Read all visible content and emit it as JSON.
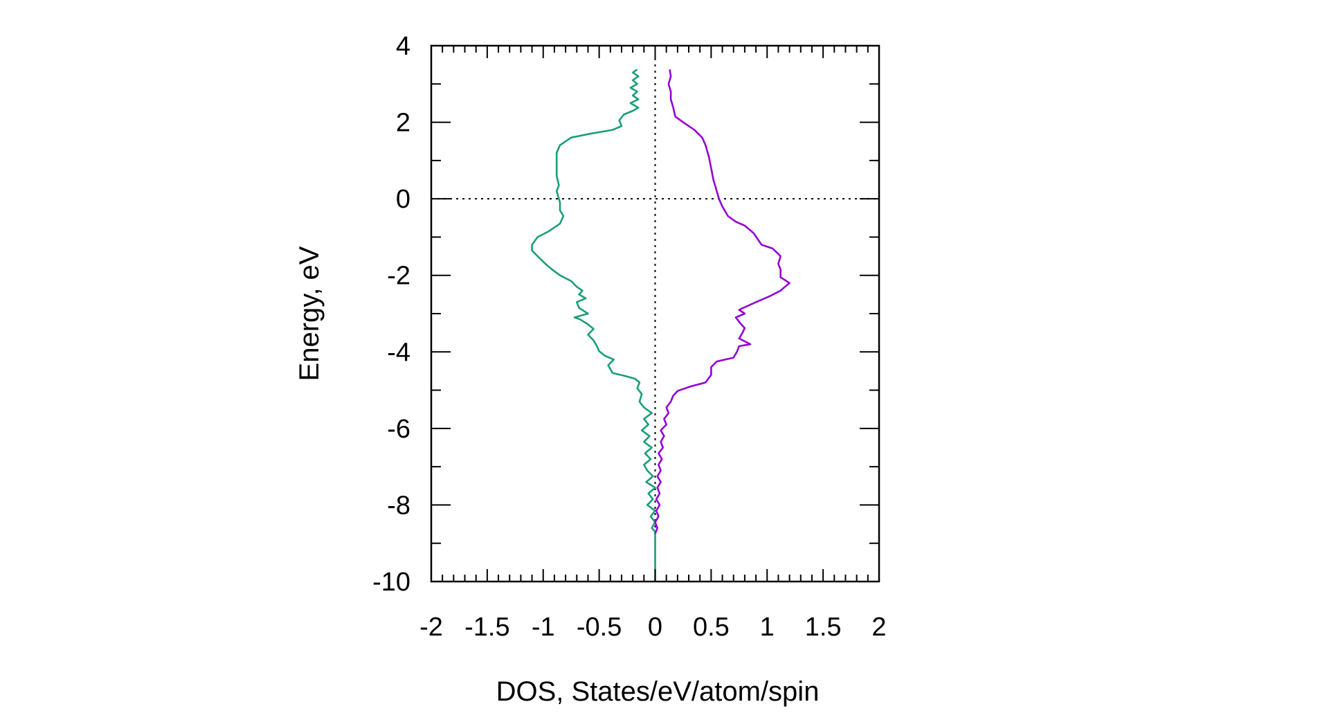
{
  "chart_data": {
    "type": "line",
    "title": "",
    "xlabel": "DOS, States/eV/atom/spin",
    "ylabel": "Energy, eV",
    "xlim": [
      -2,
      2
    ],
    "ylim": [
      -10,
      4
    ],
    "x_ticks": [
      -2,
      -1.5,
      -1,
      -0.5,
      0,
      0.5,
      1,
      1.5,
      2
    ],
    "x_tick_labels": [
      "-2",
      "-1.5",
      "-1",
      "-0.5",
      "0",
      "0.5",
      "1",
      "1.5",
      "2"
    ],
    "y_ticks": [
      -10,
      -8,
      -6,
      -4,
      -2,
      0,
      2,
      4
    ],
    "y_tick_labels": [
      "-10",
      "-8",
      "-6",
      "-4",
      "-2",
      "0",
      "2",
      "4"
    ],
    "grid": false,
    "reference_lines": [
      {
        "orientation": "horizontal",
        "value": 0,
        "style": "dotted"
      },
      {
        "orientation": "vertical",
        "value": 0,
        "style": "dotted"
      }
    ],
    "series": [
      {
        "color": "#1a9d7a",
        "points": [
          [
            0.0,
            -10.0
          ],
          [
            0.0,
            -8.7
          ],
          [
            -0.03,
            -8.6
          ],
          [
            0.0,
            -8.45
          ],
          [
            -0.04,
            -8.3
          ],
          [
            0.0,
            -8.15
          ],
          [
            -0.07,
            -8.0
          ],
          [
            -0.02,
            -7.85
          ],
          [
            -0.06,
            -7.7
          ],
          [
            0.0,
            -7.55
          ],
          [
            -0.08,
            -7.4
          ],
          [
            -0.02,
            -7.25
          ],
          [
            -0.07,
            -7.1
          ],
          [
            -0.1,
            -6.95
          ],
          [
            -0.04,
            -6.8
          ],
          [
            -0.09,
            -6.65
          ],
          [
            -0.03,
            -6.5
          ],
          [
            -0.1,
            -6.35
          ],
          [
            -0.05,
            -6.2
          ],
          [
            -0.12,
            -6.05
          ],
          [
            -0.06,
            -5.9
          ],
          [
            -0.1,
            -5.75
          ],
          [
            -0.03,
            -5.6
          ],
          [
            -0.1,
            -5.45
          ],
          [
            -0.14,
            -5.3
          ],
          [
            -0.12,
            -5.1
          ],
          [
            -0.16,
            -4.95
          ],
          [
            -0.14,
            -4.8
          ],
          [
            -0.18,
            -4.7
          ],
          [
            -0.28,
            -4.62
          ],
          [
            -0.38,
            -4.55
          ],
          [
            -0.42,
            -4.35
          ],
          [
            -0.37,
            -4.2
          ],
          [
            -0.45,
            -4.1
          ],
          [
            -0.5,
            -3.98
          ],
          [
            -0.52,
            -3.85
          ],
          [
            -0.55,
            -3.7
          ],
          [
            -0.6,
            -3.55
          ],
          [
            -0.55,
            -3.4
          ],
          [
            -0.6,
            -3.28
          ],
          [
            -0.67,
            -3.15
          ],
          [
            -0.72,
            -3.1
          ],
          [
            -0.6,
            -3.0
          ],
          [
            -0.68,
            -2.85
          ],
          [
            -0.7,
            -2.7
          ],
          [
            -0.62,
            -2.6
          ],
          [
            -0.68,
            -2.5
          ],
          [
            -0.65,
            -2.4
          ],
          [
            -0.7,
            -2.3
          ],
          [
            -0.75,
            -2.15
          ],
          [
            -0.85,
            -2.0
          ],
          [
            -0.92,
            -1.85
          ],
          [
            -0.98,
            -1.7
          ],
          [
            -1.05,
            -1.5
          ],
          [
            -1.1,
            -1.35
          ],
          [
            -1.1,
            -1.2
          ],
          [
            -1.05,
            -1.0
          ],
          [
            -0.95,
            -0.85
          ],
          [
            -0.85,
            -0.65
          ],
          [
            -0.82,
            -0.45
          ],
          [
            -0.85,
            -0.3
          ],
          [
            -0.85,
            -0.1
          ],
          [
            -0.86,
            0.0
          ],
          [
            -0.88,
            0.2
          ],
          [
            -0.86,
            0.35
          ],
          [
            -0.88,
            0.6
          ],
          [
            -0.88,
            0.8
          ],
          [
            -0.88,
            1.0
          ],
          [
            -0.88,
            1.2
          ],
          [
            -0.85,
            1.4
          ],
          [
            -0.75,
            1.6
          ],
          [
            -0.58,
            1.7
          ],
          [
            -0.38,
            1.8
          ],
          [
            -0.3,
            1.9
          ],
          [
            -0.32,
            2.05
          ],
          [
            -0.28,
            2.2
          ],
          [
            -0.2,
            2.3
          ],
          [
            -0.15,
            2.38
          ],
          [
            -0.22,
            2.5
          ],
          [
            -0.15,
            2.6
          ],
          [
            -0.2,
            2.7
          ],
          [
            -0.16,
            2.8
          ],
          [
            -0.22,
            2.9
          ],
          [
            -0.16,
            3.0
          ],
          [
            -0.2,
            3.1
          ],
          [
            -0.15,
            3.2
          ],
          [
            -0.2,
            3.3
          ],
          [
            -0.16,
            3.38
          ]
        ]
      },
      {
        "color": "#9400d3",
        "points": [
          [
            0.0,
            -8.75
          ],
          [
            0.02,
            -8.6
          ],
          [
            0.0,
            -8.45
          ],
          [
            0.03,
            -8.3
          ],
          [
            0.01,
            -8.15
          ],
          [
            0.04,
            -8.0
          ],
          [
            0.01,
            -7.85
          ],
          [
            0.04,
            -7.7
          ],
          [
            0.02,
            -7.55
          ],
          [
            0.05,
            -7.4
          ],
          [
            0.02,
            -7.25
          ],
          [
            0.05,
            -7.1
          ],
          [
            0.03,
            -6.95
          ],
          [
            0.06,
            -6.8
          ],
          [
            0.03,
            -6.65
          ],
          [
            0.07,
            -6.5
          ],
          [
            0.05,
            -6.35
          ],
          [
            0.08,
            -6.2
          ],
          [
            0.05,
            -6.05
          ],
          [
            0.1,
            -5.9
          ],
          [
            0.08,
            -5.75
          ],
          [
            0.12,
            -5.6
          ],
          [
            0.1,
            -5.45
          ],
          [
            0.14,
            -5.3
          ],
          [
            0.16,
            -5.15
          ],
          [
            0.2,
            -5.02
          ],
          [
            0.32,
            -4.9
          ],
          [
            0.45,
            -4.8
          ],
          [
            0.5,
            -4.6
          ],
          [
            0.5,
            -4.4
          ],
          [
            0.55,
            -4.25
          ],
          [
            0.7,
            -4.15
          ],
          [
            0.73,
            -4.0
          ],
          [
            0.75,
            -3.85
          ],
          [
            0.85,
            -3.8
          ],
          [
            0.75,
            -3.65
          ],
          [
            0.78,
            -3.5
          ],
          [
            0.8,
            -3.38
          ],
          [
            0.76,
            -3.25
          ],
          [
            0.72,
            -3.1
          ],
          [
            0.8,
            -3.0
          ],
          [
            0.75,
            -2.9
          ],
          [
            0.9,
            -2.7
          ],
          [
            1.02,
            -2.55
          ],
          [
            1.12,
            -2.4
          ],
          [
            1.2,
            -2.2
          ],
          [
            1.12,
            -2.05
          ],
          [
            1.12,
            -1.85
          ],
          [
            1.1,
            -1.7
          ],
          [
            1.12,
            -1.5
          ],
          [
            1.05,
            -1.3
          ],
          [
            0.95,
            -1.2
          ],
          [
            0.88,
            -0.9
          ],
          [
            0.8,
            -0.7
          ],
          [
            0.72,
            -0.6
          ],
          [
            0.65,
            -0.45
          ],
          [
            0.6,
            -0.2
          ],
          [
            0.57,
            0.0
          ],
          [
            0.55,
            0.2
          ],
          [
            0.52,
            0.5
          ],
          [
            0.5,
            0.8
          ],
          [
            0.48,
            1.1
          ],
          [
            0.45,
            1.4
          ],
          [
            0.42,
            1.6
          ],
          [
            0.35,
            1.8
          ],
          [
            0.25,
            2.0
          ],
          [
            0.18,
            2.15
          ],
          [
            0.16,
            2.4
          ],
          [
            0.14,
            2.6
          ],
          [
            0.14,
            2.8
          ],
          [
            0.12,
            3.0
          ],
          [
            0.14,
            3.2
          ],
          [
            0.13,
            3.38
          ]
        ]
      }
    ]
  }
}
